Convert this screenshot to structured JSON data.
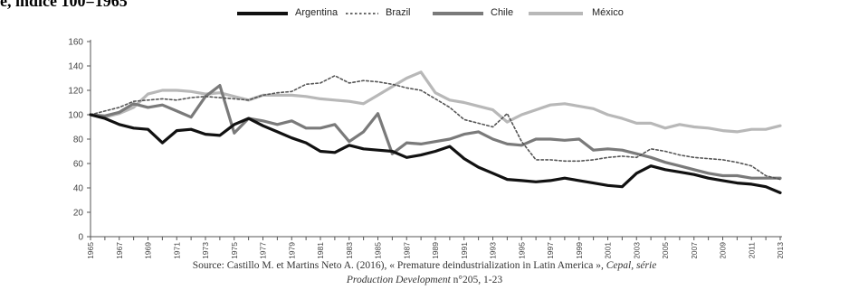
{
  "chart_data": {
    "type": "line",
    "title": "e, indice 100=1965",
    "xlabel": "",
    "ylabel": "",
    "ylim": [
      0,
      160
    ],
    "yticks": [
      0,
      20,
      40,
      60,
      80,
      100,
      120,
      140,
      160
    ],
    "xlim": [
      1965,
      2013
    ],
    "xticks": [
      "1965",
      "1967",
      "1969",
      "1971",
      "1973",
      "1975",
      "1977",
      "1979",
      "1981",
      "1983",
      "1985",
      "1987",
      "1989",
      "1991",
      "1993",
      "1995",
      "1997",
      "1999",
      "2001",
      "2003",
      "2005",
      "2007",
      "2009",
      "2011",
      "2013"
    ],
    "grid": false,
    "legend_position": "top",
    "series": [
      {
        "name": "Argentina",
        "color": "#111111",
        "style": "solid",
        "points": [
          [
            1965,
            100
          ],
          [
            1966,
            97
          ],
          [
            1967,
            92
          ],
          [
            1968,
            89
          ],
          [
            1969,
            88
          ],
          [
            1970,
            77
          ],
          [
            1971,
            87
          ],
          [
            1972,
            88
          ],
          [
            1973,
            84
          ],
          [
            1974,
            83
          ],
          [
            1975,
            92
          ],
          [
            1976,
            97
          ],
          [
            1977,
            91
          ],
          [
            1978,
            86
          ],
          [
            1979,
            81
          ],
          [
            1980,
            77
          ],
          [
            1981,
            70
          ],
          [
            1982,
            69
          ],
          [
            1983,
            75
          ],
          [
            1984,
            72
          ],
          [
            1985,
            71
          ],
          [
            1986,
            70
          ],
          [
            1987,
            65
          ],
          [
            1988,
            67
          ],
          [
            1989,
            70
          ],
          [
            1990,
            74
          ],
          [
            1991,
            64
          ],
          [
            1992,
            57
          ],
          [
            1993,
            52
          ],
          [
            1994,
            47
          ],
          [
            1995,
            46
          ],
          [
            1996,
            45
          ],
          [
            1997,
            46
          ],
          [
            1998,
            48
          ],
          [
            1999,
            46
          ],
          [
            2000,
            44
          ],
          [
            2001,
            42
          ],
          [
            2002,
            41
          ],
          [
            2003,
            52
          ],
          [
            2004,
            58
          ],
          [
            2005,
            55
          ],
          [
            2006,
            53
          ],
          [
            2007,
            51
          ],
          [
            2008,
            48
          ],
          [
            2009,
            46
          ],
          [
            2010,
            44
          ],
          [
            2011,
            43
          ],
          [
            2012,
            41
          ],
          [
            2013,
            36
          ]
        ]
      },
      {
        "name": "Brazil",
        "color": "#555555",
        "style": "dotted",
        "points": [
          [
            1965,
            100
          ],
          [
            1966,
            103
          ],
          [
            1967,
            106
          ],
          [
            1968,
            111
          ],
          [
            1969,
            112
          ],
          [
            1970,
            113
          ],
          [
            1971,
            112
          ],
          [
            1972,
            114
          ],
          [
            1973,
            115
          ],
          [
            1974,
            114
          ],
          [
            1975,
            113
          ],
          [
            1976,
            112
          ],
          [
            1977,
            116
          ],
          [
            1978,
            118
          ],
          [
            1979,
            119
          ],
          [
            1980,
            125
          ],
          [
            1981,
            126
          ],
          [
            1982,
            132
          ],
          [
            1983,
            126
          ],
          [
            1984,
            128
          ],
          [
            1985,
            127
          ],
          [
            1986,
            125
          ],
          [
            1987,
            122
          ],
          [
            1988,
            120
          ],
          [
            1989,
            113
          ],
          [
            1990,
            106
          ],
          [
            1991,
            96
          ],
          [
            1992,
            93
          ],
          [
            1993,
            90
          ],
          [
            1994,
            101
          ],
          [
            1995,
            78
          ],
          [
            1996,
            63
          ],
          [
            1997,
            63
          ],
          [
            1998,
            62
          ],
          [
            1999,
            62
          ],
          [
            2000,
            63
          ],
          [
            2001,
            65
          ],
          [
            2002,
            66
          ],
          [
            2003,
            65
          ],
          [
            2004,
            72
          ],
          [
            2005,
            70
          ],
          [
            2006,
            67
          ],
          [
            2007,
            65
          ],
          [
            2008,
            64
          ],
          [
            2009,
            63
          ],
          [
            2010,
            61
          ],
          [
            2011,
            58
          ],
          [
            2012,
            50
          ],
          [
            2013,
            47
          ]
        ]
      },
      {
        "name": "Chile",
        "color": "#7a7a7a",
        "style": "solid",
        "points": [
          [
            1965,
            100
          ],
          [
            1966,
            99
          ],
          [
            1967,
            102
          ],
          [
            1968,
            109
          ],
          [
            1969,
            106
          ],
          [
            1970,
            108
          ],
          [
            1971,
            103
          ],
          [
            1972,
            98
          ],
          [
            1973,
            115
          ],
          [
            1974,
            124
          ],
          [
            1975,
            85
          ],
          [
            1976,
            97
          ],
          [
            1977,
            95
          ],
          [
            1978,
            92
          ],
          [
            1979,
            95
          ],
          [
            1980,
            89
          ],
          [
            1981,
            89
          ],
          [
            1982,
            92
          ],
          [
            1983,
            78
          ],
          [
            1984,
            86
          ],
          [
            1985,
            101
          ],
          [
            1986,
            68
          ],
          [
            1987,
            77
          ],
          [
            1988,
            76
          ],
          [
            1989,
            78
          ],
          [
            1990,
            80
          ],
          [
            1991,
            84
          ],
          [
            1992,
            86
          ],
          [
            1993,
            80
          ],
          [
            1994,
            76
          ],
          [
            1995,
            75
          ],
          [
            1996,
            80
          ],
          [
            1997,
            80
          ],
          [
            1998,
            79
          ],
          [
            1999,
            80
          ],
          [
            2000,
            71
          ],
          [
            2001,
            72
          ],
          [
            2002,
            71
          ],
          [
            2003,
            68
          ],
          [
            2004,
            65
          ],
          [
            2005,
            61
          ],
          [
            2006,
            58
          ],
          [
            2007,
            55
          ],
          [
            2008,
            52
          ],
          [
            2009,
            50
          ],
          [
            2010,
            50
          ],
          [
            2011,
            48
          ],
          [
            2012,
            48
          ],
          [
            2013,
            48
          ]
        ]
      },
      {
        "name": "México",
        "color": "#b8b8b8",
        "style": "solid",
        "points": [
          [
            1965,
            100
          ],
          [
            1966,
            98
          ],
          [
            1967,
            101
          ],
          [
            1968,
            106
          ],
          [
            1969,
            117
          ],
          [
            1970,
            120
          ],
          [
            1971,
            120
          ],
          [
            1972,
            119
          ],
          [
            1973,
            117
          ],
          [
            1974,
            118
          ],
          [
            1975,
            115
          ],
          [
            1976,
            112
          ],
          [
            1977,
            116
          ],
          [
            1978,
            116
          ],
          [
            1979,
            116
          ],
          [
            1980,
            115
          ],
          [
            1981,
            113
          ],
          [
            1982,
            112
          ],
          [
            1983,
            111
          ],
          [
            1984,
            109
          ],
          [
            1985,
            116
          ],
          [
            1986,
            123
          ],
          [
            1987,
            130
          ],
          [
            1988,
            135
          ],
          [
            1989,
            118
          ],
          [
            1990,
            112
          ],
          [
            1991,
            110
          ],
          [
            1992,
            107
          ],
          [
            1993,
            104
          ],
          [
            1994,
            94
          ],
          [
            1995,
            100
          ],
          [
            1996,
            104
          ],
          [
            1997,
            108
          ],
          [
            1998,
            109
          ],
          [
            1999,
            107
          ],
          [
            2000,
            105
          ],
          [
            2001,
            100
          ],
          [
            2002,
            97
          ],
          [
            2003,
            93
          ],
          [
            2004,
            93
          ],
          [
            2005,
            89
          ],
          [
            2006,
            92
          ],
          [
            2007,
            90
          ],
          [
            2008,
            89
          ],
          [
            2009,
            87
          ],
          [
            2010,
            86
          ],
          [
            2011,
            88
          ],
          [
            2012,
            88
          ],
          [
            2013,
            91
          ]
        ]
      }
    ]
  },
  "source": {
    "line1_prefix": "Source: Castillo M. et Martins Neto A. (2016),  « Premature deindustrialization in Latin America », ",
    "line1_italic": "Cepal, série",
    "line2_italic": "Production Development",
    "line2_suffix": " n°205, 1-23"
  }
}
